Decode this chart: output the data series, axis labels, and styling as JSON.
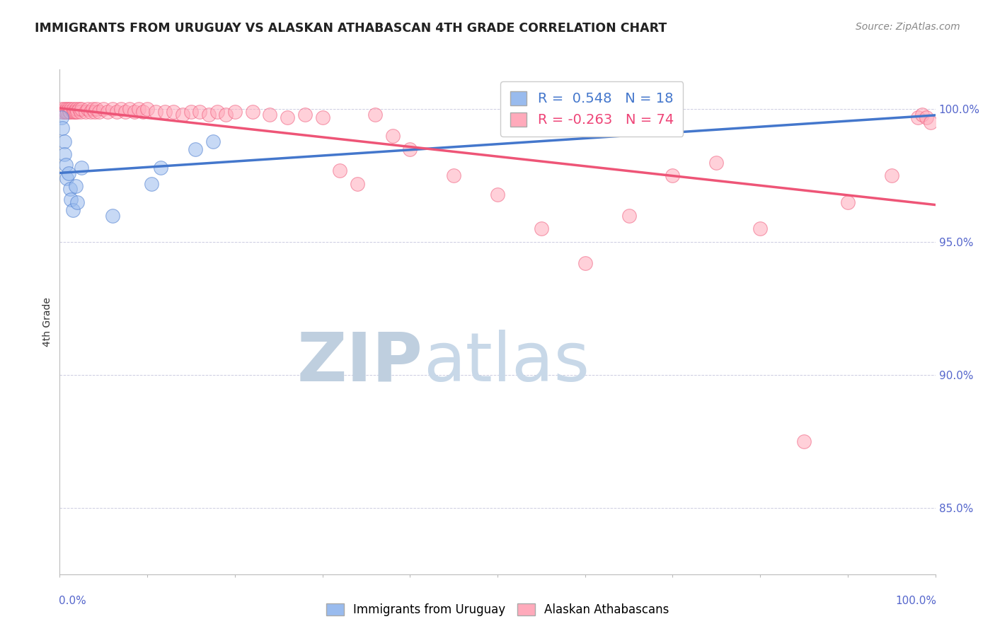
{
  "title": "IMMIGRANTS FROM URUGUAY VS ALASKAN ATHABASCAN 4TH GRADE CORRELATION CHART",
  "source": "Source: ZipAtlas.com",
  "ylabel": "4th Grade",
  "y_ticks": [
    0.85,
    0.9,
    0.95,
    1.0
  ],
  "y_tick_labels": [
    "85.0%",
    "90.0%",
    "95.0%",
    "100.0%"
  ],
  "y_min": 0.825,
  "y_max": 1.015,
  "x_min": 0.0,
  "x_max": 1.0,
  "blue_R": 0.548,
  "blue_N": 18,
  "pink_R": -0.263,
  "pink_N": 74,
  "blue_color": "#99bbee",
  "pink_color": "#ffaabb",
  "blue_line_color": "#4477cc",
  "pink_line_color": "#ee5577",
  "watermark_zip_color": "#bfcfdf",
  "watermark_atlas_color": "#c8d8e8",
  "blue_scatter_x": [
    0.002,
    0.003,
    0.005,
    0.005,
    0.007,
    0.008,
    0.01,
    0.012,
    0.013,
    0.015,
    0.018,
    0.02,
    0.025,
    0.06,
    0.105,
    0.115,
    0.155,
    0.175
  ],
  "blue_scatter_y": [
    0.997,
    0.993,
    0.988,
    0.983,
    0.979,
    0.974,
    0.976,
    0.97,
    0.966,
    0.962,
    0.971,
    0.965,
    0.978,
    0.96,
    0.972,
    0.978,
    0.985,
    0.988
  ],
  "pink_scatter_x": [
    0.002,
    0.003,
    0.004,
    0.005,
    0.006,
    0.007,
    0.008,
    0.009,
    0.01,
    0.011,
    0.012,
    0.013,
    0.015,
    0.016,
    0.017,
    0.018,
    0.019,
    0.02,
    0.022,
    0.024,
    0.025,
    0.03,
    0.032,
    0.035,
    0.038,
    0.04,
    0.042,
    0.045,
    0.05,
    0.055,
    0.06,
    0.065,
    0.07,
    0.075,
    0.08,
    0.085,
    0.09,
    0.095,
    0.1,
    0.11,
    0.12,
    0.13,
    0.14,
    0.15,
    0.16,
    0.17,
    0.18,
    0.19,
    0.2,
    0.22,
    0.24,
    0.26,
    0.28,
    0.3,
    0.32,
    0.34,
    0.36,
    0.38,
    0.4,
    0.45,
    0.5,
    0.55,
    0.6,
    0.65,
    0.7,
    0.75,
    0.8,
    0.85,
    0.9,
    0.95,
    0.98,
    0.985,
    0.99,
    0.995
  ],
  "pink_scatter_y": [
    1.0,
    0.999,
    0.999,
    1.0,
    0.999,
    0.999,
    1.0,
    0.999,
    1.0,
    0.999,
    0.999,
    1.0,
    0.999,
    1.0,
    0.999,
    0.999,
    1.0,
    0.999,
    1.0,
    0.999,
    1.0,
    0.999,
    1.0,
    0.999,
    1.0,
    0.999,
    1.0,
    0.999,
    1.0,
    0.999,
    1.0,
    0.999,
    1.0,
    0.999,
    1.0,
    0.999,
    1.0,
    0.999,
    1.0,
    0.999,
    0.999,
    0.999,
    0.998,
    0.999,
    0.999,
    0.998,
    0.999,
    0.998,
    0.999,
    0.999,
    0.998,
    0.997,
    0.998,
    0.997,
    0.977,
    0.972,
    0.998,
    0.99,
    0.985,
    0.975,
    0.968,
    0.955,
    0.942,
    0.96,
    0.975,
    0.98,
    0.955,
    0.875,
    0.965,
    0.975,
    0.997,
    0.998,
    0.997,
    0.995
  ]
}
